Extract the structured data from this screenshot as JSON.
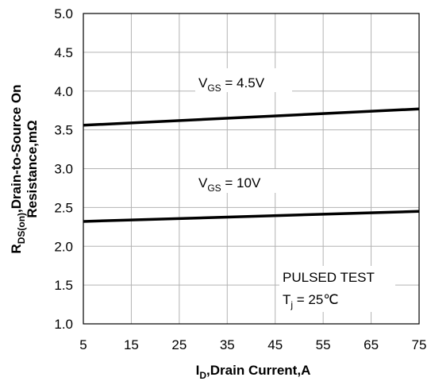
{
  "chart_data": {
    "type": "line",
    "xlabel": {
      "main": "I",
      "sub": "D",
      "rest": ",Drain Current,A"
    },
    "ylabel": {
      "main": "R",
      "sub": "DS(on)",
      "line1_rest": ",Drain-to-Source On",
      "line2": "Resistance,mΩ"
    },
    "xlim": [
      5,
      75
    ],
    "ylim": [
      1.0,
      5.0
    ],
    "x_ticks": [
      5,
      15,
      25,
      35,
      45,
      55,
      65,
      75
    ],
    "y_ticks": [
      "1.0",
      "1.5",
      "2.0",
      "2.5",
      "3.0",
      "3.5",
      "4.0",
      "4.5",
      "5.0"
    ],
    "grid": true,
    "series": [
      {
        "name": "VGS = 4.5V",
        "label": {
          "main": "V",
          "sub": "GS",
          "rest": " = 4.5V"
        },
        "x": [
          5,
          75
        ],
        "y": [
          3.56,
          3.77
        ],
        "color": "#000000"
      },
      {
        "name": "VGS = 10V",
        "label": {
          "main": "V",
          "sub": "GS",
          "rest": " = 10V"
        },
        "x": [
          5,
          75
        ],
        "y": [
          2.32,
          2.45
        ],
        "color": "#000000"
      }
    ],
    "annotation": {
      "line1": "PULSED TEST",
      "line2_main": "T",
      "line2_sub": "j",
      "line2_rest": " = 25℃"
    }
  }
}
